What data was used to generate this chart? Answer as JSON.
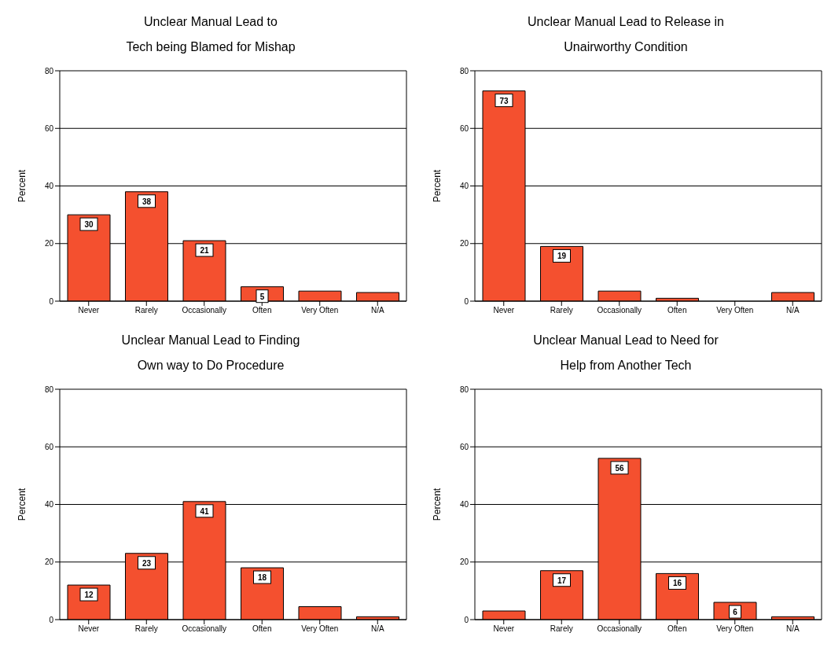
{
  "chart_data": [
    {
      "type": "bar",
      "title": "Unclear Manual Lead to\nTech being Blamed for Mishap",
      "ylabel": "Percent",
      "categories": [
        "Never",
        "Rarely",
        "Occasionally",
        "Often",
        "Very Often",
        "N/A"
      ],
      "values": [
        30,
        38,
        21,
        5,
        3.5,
        3
      ],
      "value_labels": [
        "30",
        "38",
        "21",
        "5",
        null,
        null
      ],
      "color": "#f4502f",
      "ylim": [
        0,
        80
      ],
      "yticks": [
        0,
        20,
        40,
        60,
        80
      ],
      "grid": "y"
    },
    {
      "type": "bar",
      "title": "Unclear Manual Lead to Release in\nUnairworthy Condition",
      "ylabel": "Percent",
      "categories": [
        "Never",
        "Rarely",
        "Occasionally",
        "Often",
        "Very Often",
        "N/A"
      ],
      "values": [
        73,
        19,
        3.5,
        1,
        0,
        3
      ],
      "value_labels": [
        "73",
        "19",
        null,
        null,
        null,
        null
      ],
      "color": "#f4502f",
      "ylim": [
        0,
        80
      ],
      "yticks": [
        0,
        20,
        40,
        60,
        80
      ],
      "grid": "y"
    },
    {
      "type": "bar",
      "title": "Unclear Manual Lead to Finding\nOwn way to Do Procedure",
      "ylabel": "Percent",
      "categories": [
        "Never",
        "Rarely",
        "Occasionally",
        "Often",
        "Very Often",
        "N/A"
      ],
      "values": [
        12,
        23,
        41,
        18,
        4.5,
        1
      ],
      "value_labels": [
        "12",
        "23",
        "41",
        "18",
        null,
        null
      ],
      "color": "#f4502f",
      "ylim": [
        0,
        80
      ],
      "yticks": [
        0,
        20,
        40,
        60,
        80
      ],
      "grid": "y"
    },
    {
      "type": "bar",
      "title": "Unclear Manual Lead to Need for\nHelp from Another Tech",
      "ylabel": "Percent",
      "categories": [
        "Never",
        "Rarely",
        "Occasionally",
        "Often",
        "Very Often",
        "N/A"
      ],
      "values": [
        3,
        17,
        56,
        16,
        6,
        1
      ],
      "value_labels": [
        null,
        "17",
        "56",
        "16",
        "6",
        null
      ],
      "color": "#f4502f",
      "ylim": [
        0,
        80
      ],
      "yticks": [
        0,
        20,
        40,
        60,
        80
      ],
      "grid": "y"
    }
  ]
}
